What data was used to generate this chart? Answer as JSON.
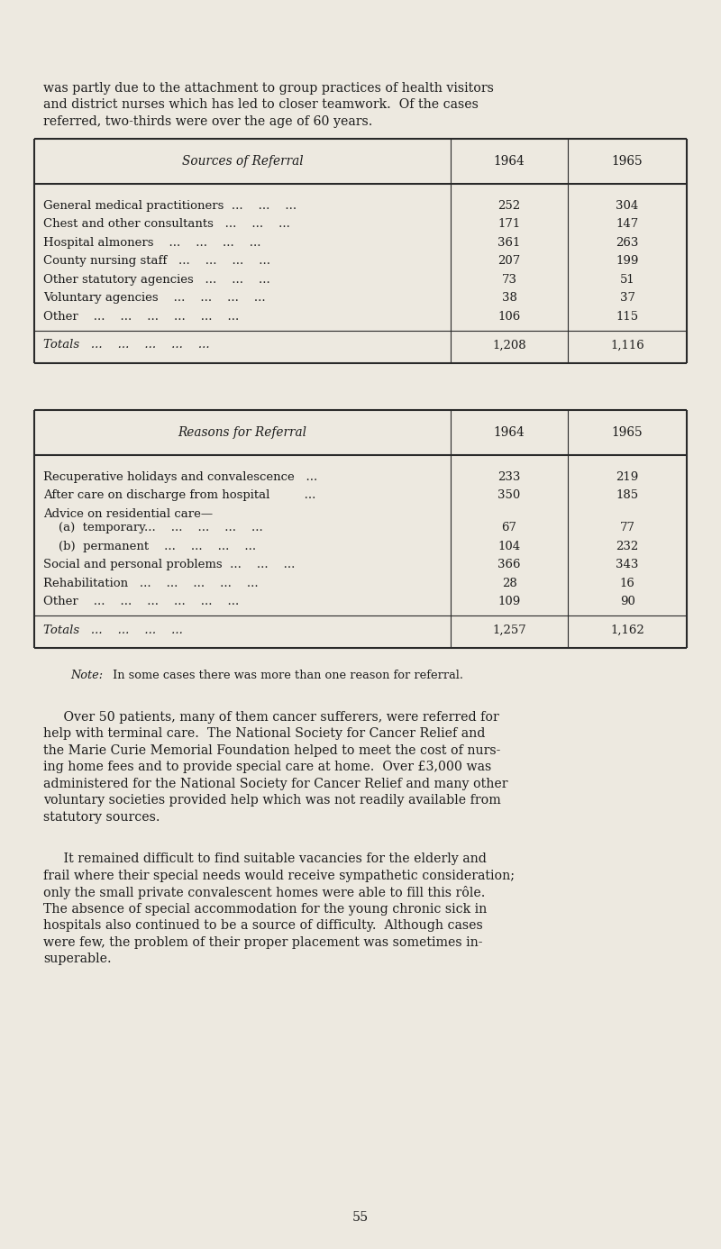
{
  "bg_color": "#ede9e0",
  "text_color": "#1c1c1c",
  "line_color": "#2a2a2a",
  "intro_lines": [
    "was partly due to the attachment to group practices of health visitors",
    "and district nurses which has led to closer teamwork.  Of the cases",
    "referred, two-thirds were over the age of 60 years."
  ],
  "t1_header": [
    "Sources of Referral",
    "1964",
    "1965"
  ],
  "t1_rows": [
    [
      "General medical practitioners  ...    ...    ...",
      "252",
      "304"
    ],
    [
      "Chest and other consultants   ...    ...    ...",
      "171",
      "147"
    ],
    [
      "Hospital almoners    ...    ...    ...    ...",
      "361",
      "263"
    ],
    [
      "County nursing staff   ...    ...    ...    ...",
      "207",
      "199"
    ],
    [
      "Other statutory agencies   ...    ...    ...",
      "73",
      "51"
    ],
    [
      "Voluntary agencies    ...    ...    ...    ...",
      "38",
      "37"
    ],
    [
      "Other    ...    ...    ...    ...    ...    ...",
      "106",
      "115"
    ]
  ],
  "t1_total_lbl": "Totals   ...    ...    ...    ...    ...",
  "t1_total_1964": "1,208",
  "t1_total_1965": "1,116",
  "t2_header": [
    "Reasons for Referral",
    "1964",
    "1965"
  ],
  "t2_rows": [
    [
      "Recuperative holidays and convalescence   ...",
      "233",
      "219"
    ],
    [
      "After care on discharge from hospital         ...",
      "350",
      "185"
    ],
    [
      "Advice on residential care—",
      "",
      ""
    ],
    [
      "    (a)  temporary...    ...    ...    ...    ...",
      "67",
      "77"
    ],
    [
      "    (b)  permanent    ...    ...    ...    ...",
      "104",
      "232"
    ],
    [
      "Social and personal problems  ...    ...    ...",
      "366",
      "343"
    ],
    [
      "Rehabilitation   ...    ...    ...    ...    ...",
      "28",
      "16"
    ],
    [
      "Other    ...    ...    ...    ...    ...    ...",
      "109",
      "90"
    ]
  ],
  "t2_total_lbl": "Totals   ...    ...    ...    ...",
  "t2_total_1964": "1,257",
  "t2_total_1965": "1,162",
  "note_italic": "Note:",
  "note_rest": " In some cases there was more than one reason for referral.",
  "para1_lines": [
    "     Over 50 patients, many of them cancer sufferers, were referred for",
    "help with terminal care.  The National Society for Cancer Relief and",
    "the Marie Curie Memorial Foundation helped to meet the cost of nurs-",
    "ing home fees and to provide special care at home.  Over £3,000 was",
    "administered for the National Society for Cancer Relief and many other",
    "voluntary societies provided help which was not readily available from",
    "statutory sources."
  ],
  "para2_lines": [
    "     It remained difficult to find suitable vacancies for the elderly and",
    "frail where their special needs would receive sympathetic consideration;",
    "only the small private convalescent homes were able to fill this rôle.",
    "The absence of special accommodation for the young chronic sick in",
    "hospitals also continued to be a source of difficulty.  Although cases",
    "were few, the problem of their proper placement was sometimes in-",
    "superable."
  ],
  "page_num": "55"
}
